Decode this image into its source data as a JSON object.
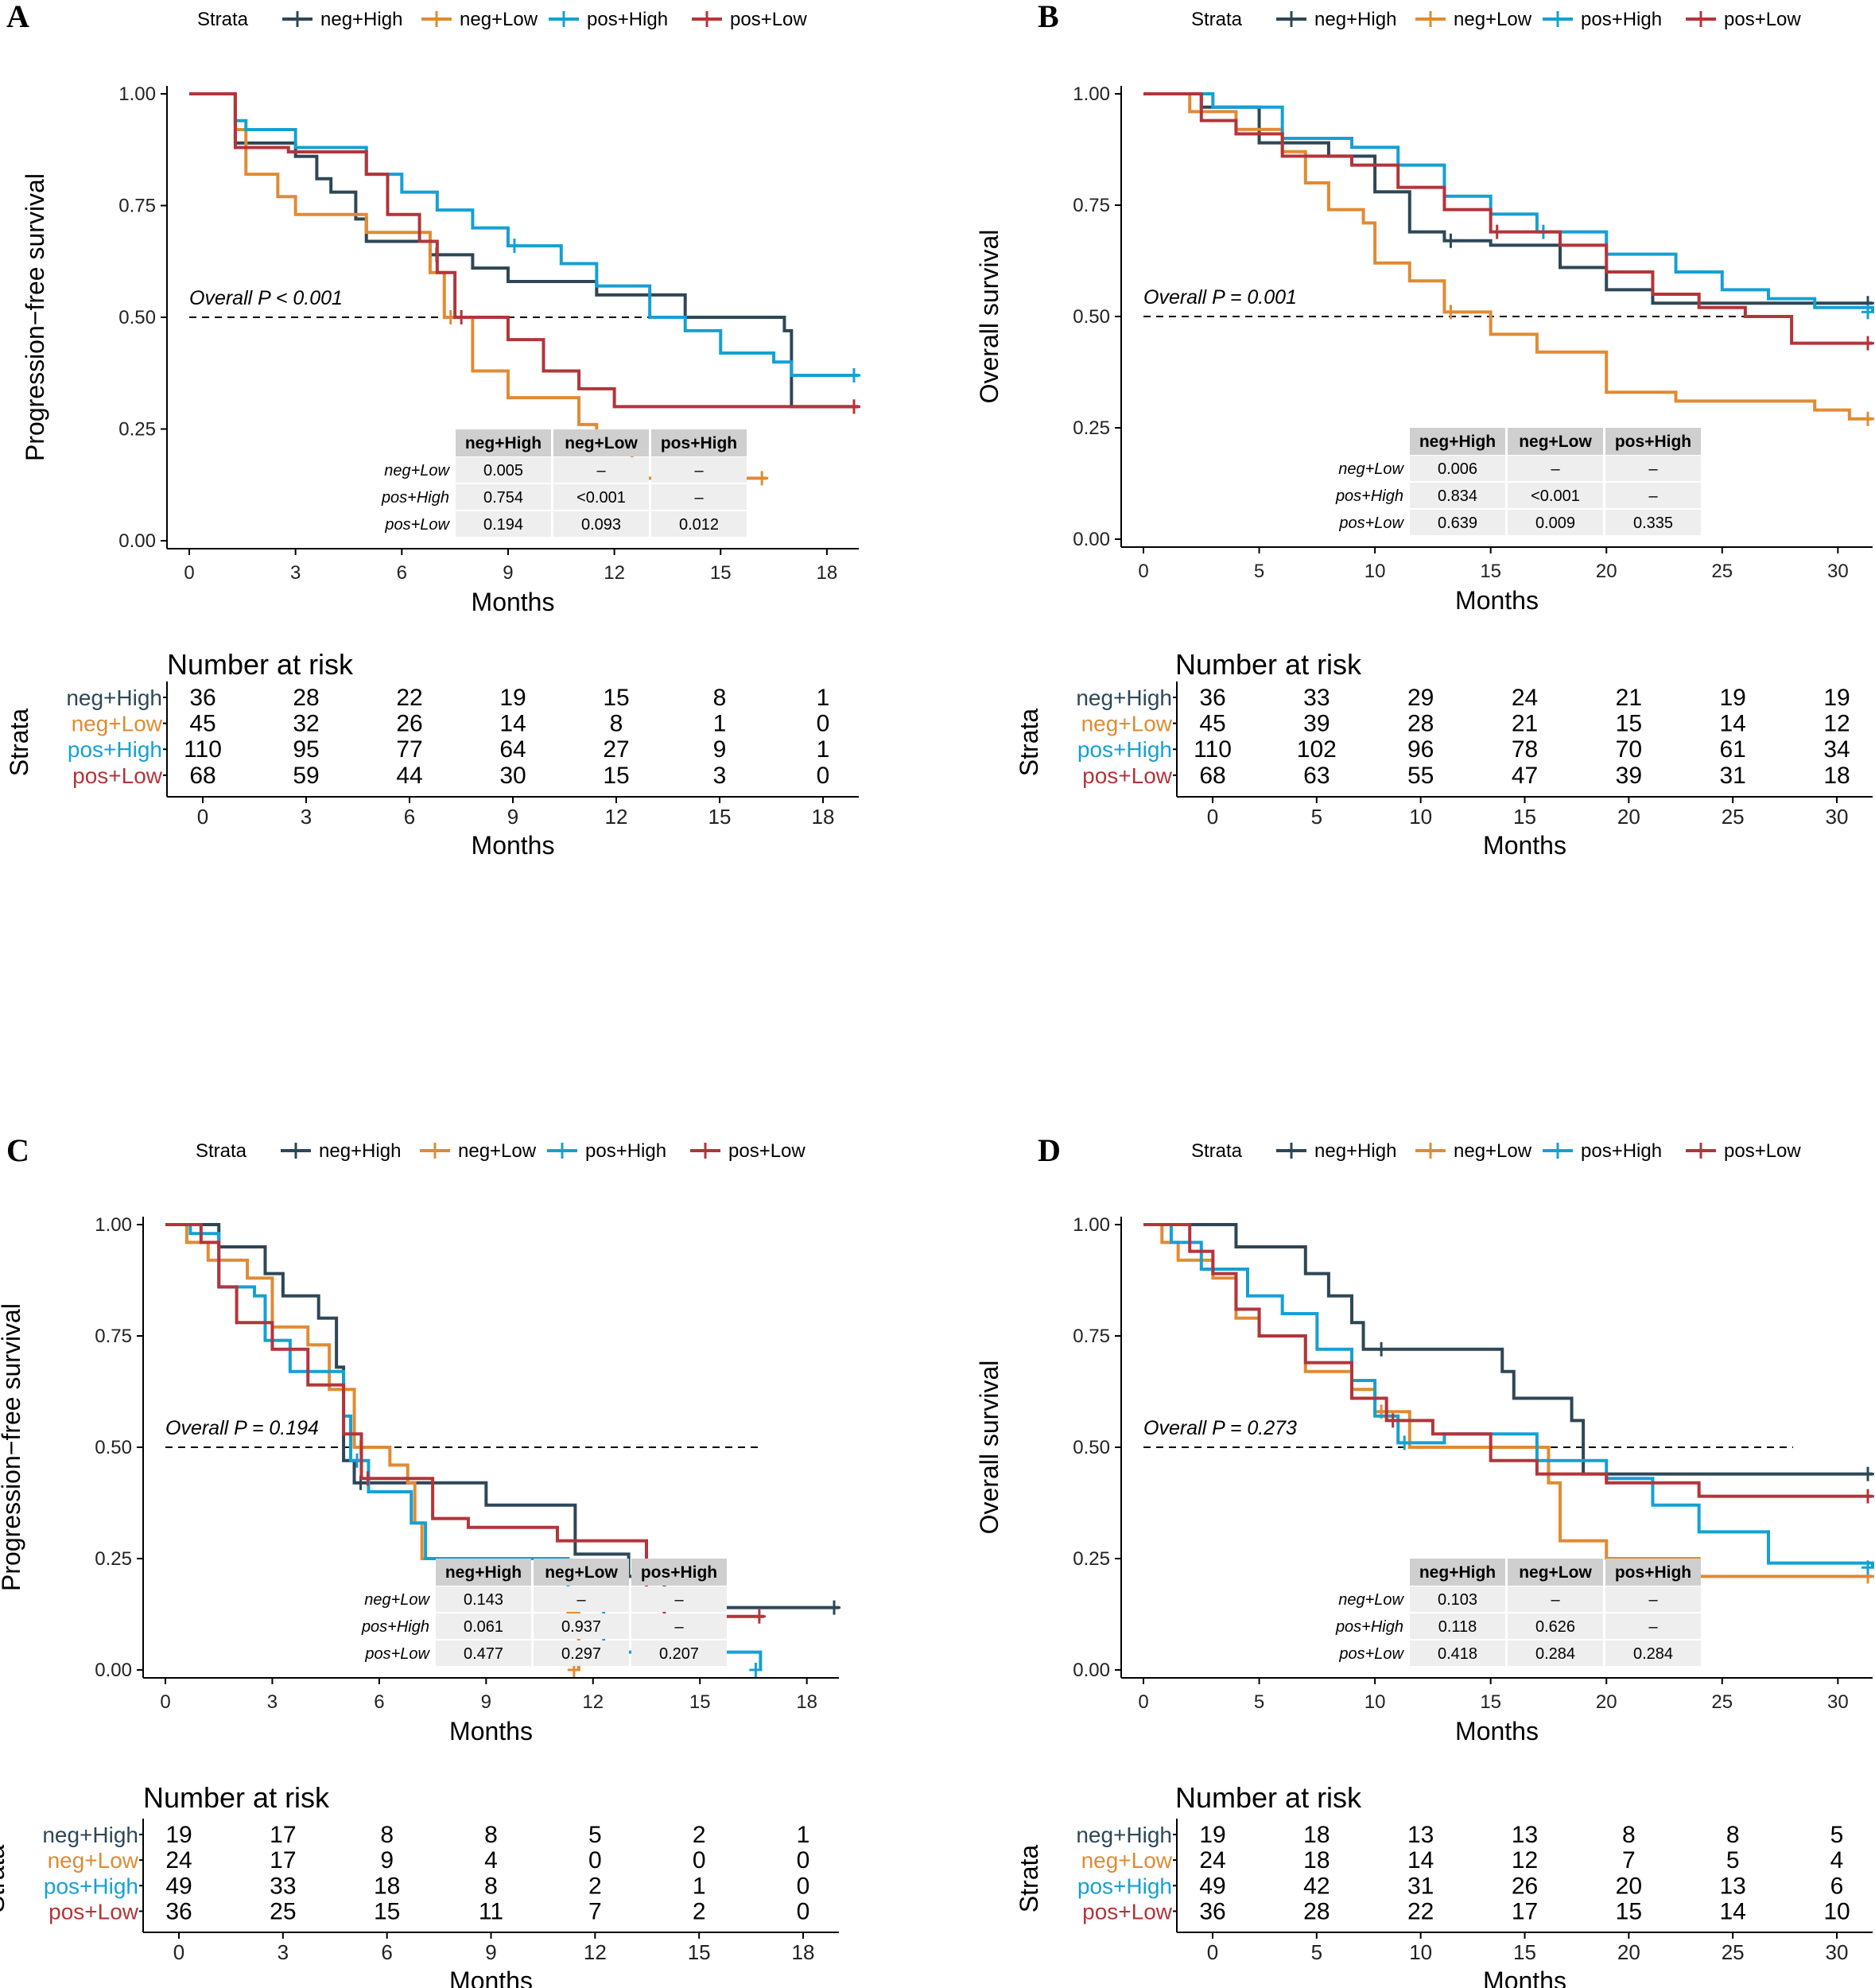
{
  "colors": {
    "neg_high": "#2e4756",
    "neg_low": "#e08b33",
    "pos_high": "#15a0d4",
    "pos_low": "#b2353b",
    "table_header": "#cfcfcf",
    "table_row": "#eeeeee"
  },
  "legend_title": "Strata",
  "strata_names": [
    "neg+High",
    "neg+Low",
    "pos+High",
    "pos+Low"
  ],
  "chart_data": [
    {
      "panel": "A",
      "type": "line",
      "subtype": "kaplan-meier",
      "ylabel": "Progression−free survival",
      "xlabel": "Months",
      "xlim": [
        0,
        18.9
      ],
      "ylim": [
        0,
        1
      ],
      "xticks": [
        0,
        3,
        6,
        9,
        12,
        15,
        18
      ],
      "yticks": [
        "0.00",
        "0.25",
        "0.50",
        "0.75",
        "1.00"
      ],
      "p_text": "Overall P < 0.001",
      "median_line": 0.5,
      "pairwise": {
        "cols": [
          "neg+High",
          "neg+Low",
          "pos+High"
        ],
        "rows": [
          {
            "name": "neg+Low",
            "vals": [
              "0.005",
              "–",
              "–"
            ]
          },
          {
            "name": "pos+High",
            "vals": [
              "0.754",
              "<0.001",
              "–"
            ]
          },
          {
            "name": "pos+Low",
            "vals": [
              "0.194",
              "0.093",
              "0.012"
            ]
          }
        ]
      },
      "risk_title": "Number at risk",
      "risk_ylabel": "Strata",
      "risk_times": [
        0,
        3,
        6,
        9,
        12,
        15,
        18
      ],
      "risk": [
        [
          "36",
          "28",
          "22",
          "19",
          "15",
          "8",
          "1"
        ],
        [
          "45",
          "32",
          "26",
          "14",
          "8",
          "1",
          "0"
        ],
        [
          "110",
          "95",
          "77",
          "64",
          "27",
          "9",
          "1"
        ],
        [
          "68",
          "59",
          "44",
          "30",
          "15",
          "3",
          "0"
        ]
      ],
      "series": [
        {
          "name": "neg+High",
          "t": [
            0,
            1.3,
            1.9,
            3.0,
            3.6,
            4.0,
            4.7,
            5.0,
            6.8,
            8.0,
            9.0,
            11.5,
            14.0,
            16.8,
            17.0,
            18.9
          ],
          "s": [
            1,
            0.89,
            0.89,
            0.86,
            0.81,
            0.78,
            0.72,
            0.67,
            0.64,
            0.61,
            0.58,
            0.55,
            0.5,
            0.47,
            0.3,
            0.3
          ]
        },
        {
          "name": "neg+Low",
          "t": [
            0,
            1.3,
            1.6,
            2.5,
            3.0,
            5.0,
            6.8,
            7.2,
            8.0,
            9.0,
            11.0,
            11.5,
            12.5,
            16.3
          ],
          "s": [
            1,
            0.92,
            0.82,
            0.77,
            0.73,
            0.69,
            0.6,
            0.5,
            0.38,
            0.32,
            0.26,
            0.2,
            0.14,
            0.14
          ]
        },
        {
          "name": "pos+High",
          "t": [
            0,
            1.3,
            1.6,
            3.0,
            5.0,
            6.0,
            7.0,
            8.0,
            9.0,
            10.5,
            11.5,
            13.0,
            14.0,
            15.0,
            16.5,
            17.0,
            18.9
          ],
          "s": [
            1,
            0.94,
            0.92,
            0.88,
            0.82,
            0.78,
            0.74,
            0.7,
            0.66,
            0.62,
            0.57,
            0.5,
            0.47,
            0.42,
            0.4,
            0.37,
            0.37
          ]
        },
        {
          "name": "pos+Low",
          "t": [
            0,
            1.3,
            2.8,
            5.0,
            5.6,
            6.5,
            7.0,
            7.5,
            9.0,
            10.0,
            11.0,
            12.0,
            13.0,
            18.9
          ],
          "s": [
            1,
            0.88,
            0.87,
            0.82,
            0.73,
            0.67,
            0.6,
            0.5,
            0.45,
            0.38,
            0.34,
            0.3,
            0.3,
            0.3
          ]
        }
      ]
    },
    {
      "panel": "B",
      "type": "line",
      "subtype": "kaplan-meier",
      "ylabel": "Overall survival",
      "xlabel": "Months",
      "xlim": [
        0,
        31.5
      ],
      "ylim": [
        0,
        1
      ],
      "xticks": [
        0,
        5,
        10,
        15,
        20,
        25,
        30
      ],
      "yticks": [
        "0.00",
        "0.25",
        "0.50",
        "0.75",
        "1.00"
      ],
      "p_text": "Overall P = 0.001",
      "median_line": 0.5,
      "pairwise": {
        "cols": [
          "neg+High",
          "neg+Low",
          "pos+High"
        ],
        "rows": [
          {
            "name": "neg+Low",
            "vals": [
              "0.006",
              "–",
              "–"
            ]
          },
          {
            "name": "pos+High",
            "vals": [
              "0.834",
              "<0.001",
              "–"
            ]
          },
          {
            "name": "pos+Low",
            "vals": [
              "0.639",
              "0.009",
              "0.335"
            ]
          }
        ]
      },
      "risk_title": "Number at risk",
      "risk_ylabel": "Strata",
      "risk_times": [
        0,
        5,
        10,
        15,
        20,
        25,
        30
      ],
      "risk": [
        [
          "36",
          "33",
          "29",
          "24",
          "21",
          "19",
          "19"
        ],
        [
          "45",
          "39",
          "28",
          "21",
          "15",
          "14",
          "12"
        ],
        [
          "110",
          "102",
          "96",
          "78",
          "70",
          "61",
          "34"
        ],
        [
          "68",
          "63",
          "55",
          "47",
          "39",
          "31",
          "18"
        ]
      ],
      "series": [
        {
          "name": "neg+High",
          "t": [
            0,
            2.5,
            5.0,
            8.0,
            10.0,
            11.5,
            13.0,
            15.0,
            18.0,
            20.0,
            22.0,
            25.0,
            31.5
          ],
          "s": [
            1,
            0.97,
            0.89,
            0.86,
            0.78,
            0.69,
            0.67,
            0.66,
            0.61,
            0.56,
            0.53,
            0.53,
            0.53
          ]
        },
        {
          "name": "neg+Low",
          "t": [
            0,
            2.0,
            4.0,
            6.0,
            7.0,
            8.0,
            9.5,
            10.0,
            11.5,
            13.0,
            15.0,
            17.0,
            20.0,
            23.0,
            25.0,
            29.0,
            30.5,
            31.5
          ],
          "s": [
            1,
            0.96,
            0.92,
            0.87,
            0.8,
            0.74,
            0.71,
            0.62,
            0.58,
            0.51,
            0.46,
            0.42,
            0.33,
            0.31,
            0.31,
            0.29,
            0.27,
            0.27
          ]
        },
        {
          "name": "pos+High",
          "t": [
            0,
            3.0,
            6.0,
            9.0,
            11.0,
            13.0,
            15.0,
            17.0,
            20.0,
            23.0,
            25.0,
            27.0,
            29.0,
            31.5
          ],
          "s": [
            1,
            0.97,
            0.9,
            0.88,
            0.84,
            0.77,
            0.73,
            0.69,
            0.64,
            0.6,
            0.56,
            0.54,
            0.52,
            0.51
          ]
        },
        {
          "name": "pos+Low",
          "t": [
            0,
            2.5,
            4.0,
            6.0,
            9.0,
            11.0,
            13.0,
            15.0,
            18.0,
            20.0,
            22.0,
            24.0,
            26.0,
            28.0,
            31.5
          ],
          "s": [
            1,
            0.94,
            0.91,
            0.86,
            0.84,
            0.79,
            0.74,
            0.69,
            0.66,
            0.6,
            0.55,
            0.52,
            0.5,
            0.44,
            0.44
          ]
        }
      ]
    },
    {
      "panel": "C",
      "type": "line",
      "subtype": "kaplan-meier",
      "ylabel": "Progression−free survival",
      "xlabel": "Months",
      "xlim": [
        0,
        18.9
      ],
      "ylim": [
        0,
        1
      ],
      "xticks": [
        0,
        3,
        6,
        9,
        12,
        15,
        18
      ],
      "yticks": [
        "0.00",
        "0.25",
        "0.50",
        "0.75",
        "1.00"
      ],
      "p_text": "Overall P = 0.194",
      "median_line": 0.5,
      "pairwise": {
        "cols": [
          "neg+High",
          "neg+Low",
          "pos+High"
        ],
        "rows": [
          {
            "name": "neg+Low",
            "vals": [
              "0.143",
              "–",
              "–"
            ]
          },
          {
            "name": "pos+High",
            "vals": [
              "0.061",
              "0.937",
              "–"
            ]
          },
          {
            "name": "pos+Low",
            "vals": [
              "0.477",
              "0.297",
              "0.207"
            ]
          }
        ]
      },
      "risk_title": "Number at risk",
      "risk_ylabel": "Strata",
      "risk_times": [
        0,
        3,
        6,
        9,
        12,
        15,
        18
      ],
      "risk": [
        [
          "19",
          "17",
          "8",
          "8",
          "5",
          "2",
          "1"
        ],
        [
          "24",
          "17",
          "9",
          "4",
          "0",
          "0",
          "0"
        ],
        [
          "49",
          "33",
          "18",
          "8",
          "2",
          "1",
          "0"
        ],
        [
          "36",
          "25",
          "15",
          "11",
          "7",
          "2",
          "0"
        ]
      ],
      "series": [
        {
          "name": "neg+High",
          "t": [
            0,
            1.5,
            2.8,
            3.3,
            4.3,
            4.8,
            5.0,
            5.3,
            7.0,
            9.0,
            11.5,
            13.0,
            14.0,
            18.9
          ],
          "s": [
            1,
            0.95,
            0.89,
            0.84,
            0.79,
            0.68,
            0.47,
            0.42,
            0.42,
            0.37,
            0.26,
            0.21,
            0.14,
            0.14
          ]
        },
        {
          "name": "neg+Low",
          "t": [
            0,
            0.6,
            1.2,
            2.3,
            3.0,
            4.0,
            4.6,
            5.3,
            6.3,
            6.8,
            7.0,
            7.2,
            11.3,
            11.6
          ],
          "s": [
            1,
            0.96,
            0.92,
            0.88,
            0.77,
            0.73,
            0.63,
            0.5,
            0.46,
            0.42,
            0.33,
            0.25,
            0.13,
            0.0
          ]
        },
        {
          "name": "pos+High",
          "t": [
            0,
            0.7,
            1.5,
            2.5,
            2.8,
            3.5,
            5.0,
            5.2,
            5.7,
            6.9,
            7.3,
            11.3,
            12.3,
            16.7
          ],
          "s": [
            1,
            0.98,
            0.86,
            0.84,
            0.74,
            0.67,
            0.57,
            0.47,
            0.4,
            0.33,
            0.25,
            0.15,
            0.04,
            0.0
          ]
        },
        {
          "name": "pos+Low",
          "t": [
            0,
            1.0,
            1.5,
            2.0,
            3.0,
            4.0,
            5.0,
            5.5,
            7.5,
            8.5,
            11.0,
            13.5,
            14.0,
            16.8
          ],
          "s": [
            1,
            0.96,
            0.86,
            0.78,
            0.72,
            0.64,
            0.53,
            0.43,
            0.34,
            0.32,
            0.29,
            0.18,
            0.12,
            0.12
          ]
        }
      ]
    },
    {
      "panel": "D",
      "type": "line",
      "subtype": "kaplan-meier",
      "ylabel": "Overall survival",
      "xlabel": "Months",
      "xlim": [
        0,
        31.5
      ],
      "ylim": [
        0,
        1
      ],
      "xticks": [
        0,
        5,
        10,
        15,
        20,
        25,
        30
      ],
      "yticks": [
        "0.00",
        "0.25",
        "0.50",
        "0.75",
        "1.00"
      ],
      "p_text": "Overall P = 0.273",
      "median_line": 0.5,
      "pairwise": {
        "cols": [
          "neg+High",
          "neg+Low",
          "pos+High"
        ],
        "rows": [
          {
            "name": "neg+Low",
            "vals": [
              "0.103",
              "–",
              "–"
            ]
          },
          {
            "name": "pos+High",
            "vals": [
              "0.118",
              "0.626",
              "–"
            ]
          },
          {
            "name": "pos+Low",
            "vals": [
              "0.418",
              "0.284",
              "0.284"
            ]
          }
        ]
      },
      "risk_title": "Number at risk",
      "risk_ylabel": "Strata",
      "risk_times": [
        0,
        5,
        10,
        15,
        20,
        25,
        30
      ],
      "risk": [
        [
          "19",
          "18",
          "13",
          "13",
          "8",
          "8",
          "5"
        ],
        [
          "24",
          "18",
          "14",
          "12",
          "7",
          "5",
          "4"
        ],
        [
          "49",
          "42",
          "31",
          "26",
          "20",
          "13",
          "6"
        ],
        [
          "36",
          "28",
          "22",
          "17",
          "15",
          "14",
          "10"
        ]
      ],
      "series": [
        {
          "name": "neg+High",
          "t": [
            0,
            4.0,
            7.0,
            8.0,
            9.0,
            9.5,
            10.0,
            15.5,
            16.0,
            18.5,
            19.0,
            31.5
          ],
          "s": [
            1,
            0.95,
            0.89,
            0.84,
            0.78,
            0.72,
            0.72,
            0.67,
            0.61,
            0.56,
            0.44,
            0.44
          ]
        },
        {
          "name": "neg+Low",
          "t": [
            0,
            0.8,
            1.5,
            3.0,
            4.0,
            5.0,
            7.0,
            9.0,
            10.0,
            11.5,
            15.0,
            17.5,
            18.0,
            20.0,
            24.0,
            31.5
          ],
          "s": [
            1,
            0.96,
            0.92,
            0.88,
            0.79,
            0.75,
            0.67,
            0.63,
            0.58,
            0.5,
            0.5,
            0.42,
            0.29,
            0.25,
            0.21,
            0.21
          ]
        },
        {
          "name": "pos+High",
          "t": [
            0,
            1.2,
            2.5,
            4.5,
            6.0,
            7.5,
            9.0,
            10.0,
            11.0,
            13.0,
            17.0,
            20.0,
            22.0,
            24.0,
            27.0,
            31.5
          ],
          "s": [
            1,
            0.96,
            0.9,
            0.84,
            0.8,
            0.72,
            0.65,
            0.57,
            0.51,
            0.53,
            0.47,
            0.43,
            0.37,
            0.31,
            0.24,
            0.23
          ]
        },
        {
          "name": "pos+Low",
          "t": [
            0,
            2.0,
            3.0,
            4.0,
            5.0,
            7.0,
            9.0,
            10.5,
            12.5,
            15.0,
            17.0,
            20.0,
            24.0,
            31.5
          ],
          "s": [
            1,
            0.94,
            0.89,
            0.81,
            0.75,
            0.69,
            0.61,
            0.56,
            0.53,
            0.47,
            0.44,
            0.42,
            0.39,
            0.39
          ]
        }
      ]
    }
  ]
}
